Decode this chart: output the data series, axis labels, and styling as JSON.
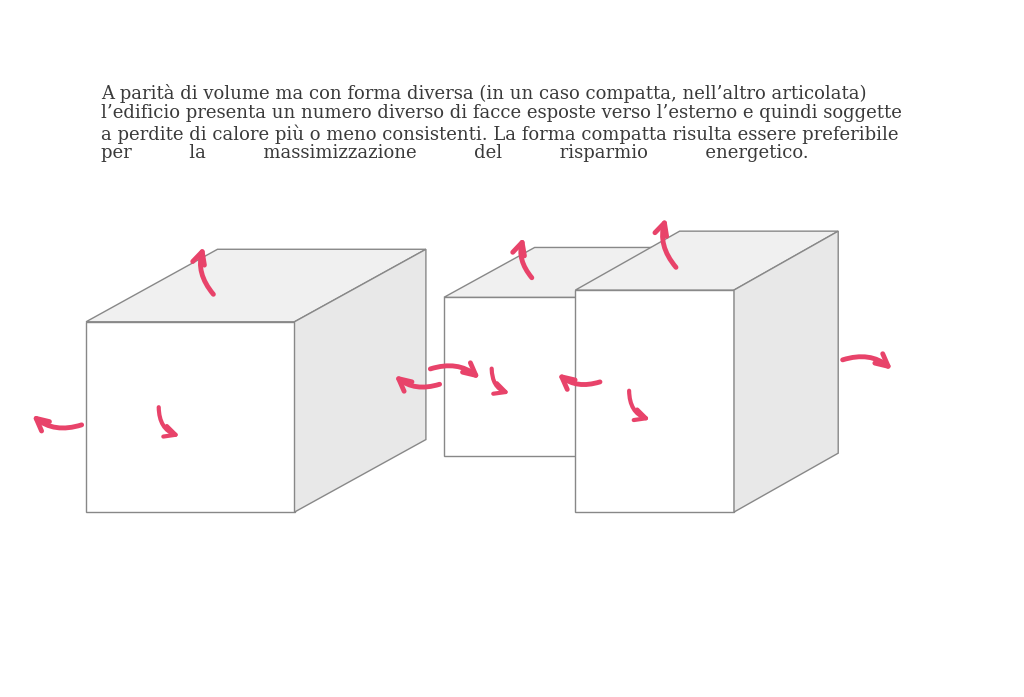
{
  "bg_color": "#ffffff",
  "text_color": "#3a3a3a",
  "arrow_color": "#e8436a",
  "box_edge_color": "#888888",
  "paragraph_line1": "A parità di volume ma con forma diversa (in un caso compatta, nell’altro articolata)",
  "paragraph_line2": "l’edificio presenta un numero diverso di facce esposte verso l’esterno e quindi soggette",
  "paragraph_line3": "a perdite di calore più o meno consistenti. La forma compatta risulta essere preferibile",
  "paragraph_line4": "per          la          massimizzazione          del          risparmio          energetico.",
  "font_size_text": 13.0,
  "line_width": 1.0
}
